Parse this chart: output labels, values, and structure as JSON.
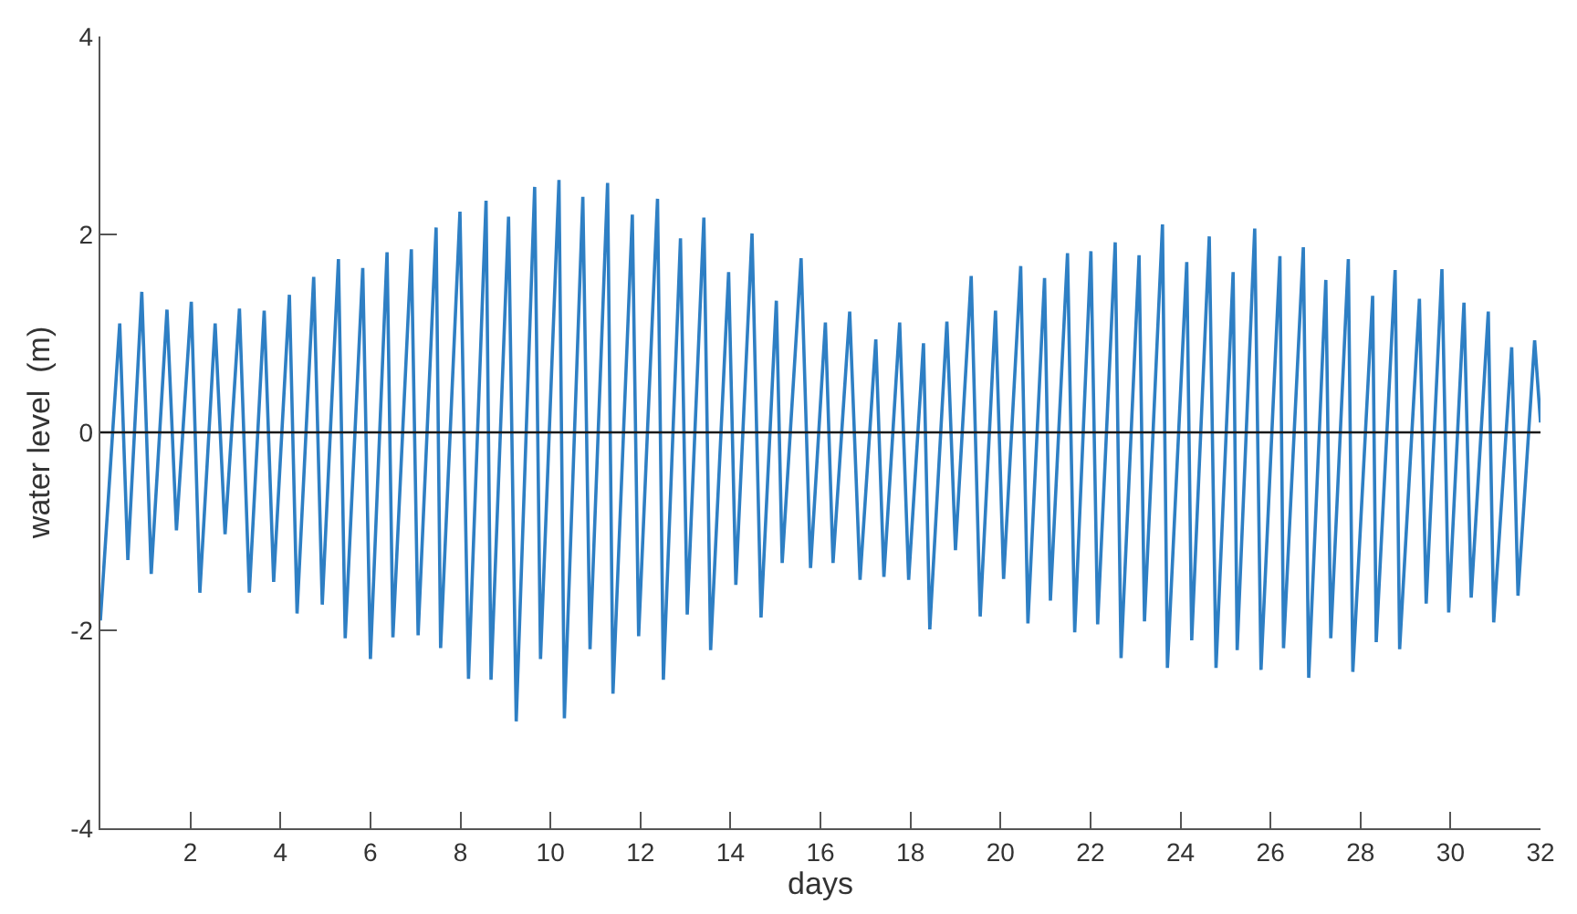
{
  "chart_data": {
    "type": "line",
    "xlabel": "days",
    "ylabel": "water level  (m)",
    "x": [
      0,
      0.43,
      0.61,
      0.92,
      1.13,
      1.48,
      1.69,
      2.02,
      2.21,
      2.55,
      2.77,
      3.09,
      3.31,
      3.64,
      3.85,
      4.2,
      4.37,
      4.74,
      4.93,
      5.29,
      5.44,
      5.83,
      6.0,
      6.37,
      6.5,
      6.91,
      7.06,
      7.46,
      7.56,
      7.99,
      8.18,
      8.57,
      8.68,
      9.07,
      9.24,
      9.65,
      9.78,
      10.19,
      10.31,
      10.72,
      10.88,
      11.27,
      11.39,
      11.82,
      11.96,
      12.38,
      12.51,
      12.89,
      13.04,
      13.41,
      13.56,
      13.96,
      14.12,
      14.48,
      14.68,
      15.02,
      15.15,
      15.57,
      15.78,
      16.11,
      16.28,
      16.65,
      16.88,
      17.23,
      17.41,
      17.76,
      17.96,
      18.29,
      18.43,
      18.81,
      19.0,
      19.35,
      19.55,
      19.89,
      20.07,
      20.45,
      20.61,
      20.98,
      21.11,
      21.49,
      21.65,
      22.01,
      22.16,
      22.55,
      22.68,
      23.08,
      23.2,
      23.6,
      23.71,
      24.14,
      24.25,
      24.64,
      24.79,
      25.17,
      25.26,
      25.65,
      25.79,
      26.21,
      26.29,
      26.73,
      26.85,
      27.23,
      27.34,
      27.73,
      27.83,
      28.27,
      28.35,
      28.77,
      28.87,
      29.31,
      29.46,
      29.81,
      29.96,
      30.3,
      30.46,
      30.84,
      30.96,
      31.36,
      31.5,
      31.87,
      32.0
    ],
    "values": [
      -1.9,
      1.1,
      -1.29,
      1.42,
      -1.43,
      1.24,
      -0.99,
      1.32,
      -1.62,
      1.1,
      -1.03,
      1.25,
      -1.62,
      1.23,
      -1.51,
      1.39,
      -1.83,
      1.57,
      -1.74,
      1.75,
      -2.08,
      1.66,
      -2.29,
      1.82,
      -2.07,
      1.85,
      -2.05,
      2.07,
      -2.18,
      2.23,
      -2.49,
      2.34,
      -2.5,
      2.18,
      -2.92,
      2.48,
      -2.29,
      2.55,
      -2.89,
      2.38,
      -2.19,
      2.52,
      -2.64,
      2.2,
      -2.06,
      2.36,
      -2.5,
      1.96,
      -1.84,
      2.17,
      -2.2,
      1.62,
      -1.54,
      2.01,
      -1.87,
      1.33,
      -1.32,
      1.76,
      -1.37,
      1.11,
      -1.32,
      1.22,
      -1.49,
      0.94,
      -1.46,
      1.11,
      -1.49,
      0.9,
      -1.99,
      1.12,
      -1.19,
      1.58,
      -1.86,
      1.23,
      -1.48,
      1.68,
      -1.93,
      1.56,
      -1.7,
      1.81,
      -2.02,
      1.83,
      -1.94,
      1.92,
      -2.28,
      1.79,
      -1.91,
      2.1,
      -2.38,
      1.72,
      -2.1,
      1.98,
      -2.38,
      1.62,
      -2.2,
      2.06,
      -2.4,
      1.78,
      -2.18,
      1.87,
      -2.48,
      1.54,
      -2.08,
      1.75,
      -2.42,
      1.38,
      -2.12,
      1.64,
      -2.19,
      1.35,
      -1.73,
      1.65,
      -1.82,
      1.31,
      -1.67,
      1.22,
      -1.92,
      0.86,
      -1.65,
      0.93,
      0.1
    ],
    "color": "#2e7fc4",
    "line_style": "solid",
    "marker": "none",
    "xlim": [
      0,
      32
    ],
    "xticks": [
      2,
      4,
      6,
      8,
      10,
      12,
      14,
      16,
      18,
      20,
      22,
      24,
      26,
      28,
      30,
      32
    ],
    "ylim": [
      -4,
      4
    ],
    "yticks": [
      -4,
      -2,
      0,
      2,
      4
    ],
    "grid": false,
    "ref_lines": [
      {
        "axis": "y",
        "value": 0,
        "color": "#1a1a1a"
      }
    ]
  }
}
